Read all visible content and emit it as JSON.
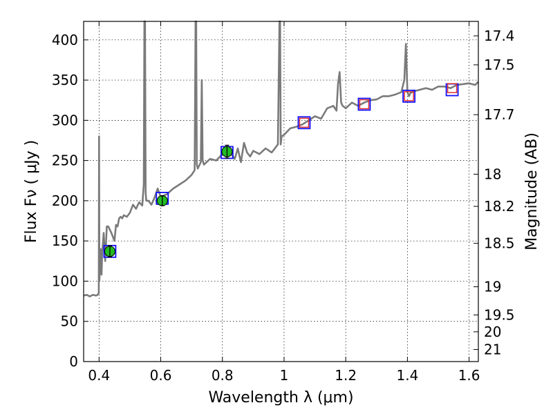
{
  "chart_data": {
    "type": "line",
    "xlabel": "Wavelength  λ (μm)",
    "ylabel": "Flux  Fν  ( μJy )",
    "ylabel_right": "Magnitude (AB)",
    "xlim": [
      0.35,
      1.63
    ],
    "ylim": [
      0,
      423
    ],
    "grid": true,
    "x_ticks": [
      {
        "value": 0.4,
        "label": "0.4"
      },
      {
        "value": 0.6,
        "label": "0.6"
      },
      {
        "value": 0.8,
        "label": "0.8"
      },
      {
        "value": 1.0,
        "label": "1"
      },
      {
        "value": 1.2,
        "label": "1.2"
      },
      {
        "value": 1.4,
        "label": "1.4"
      },
      {
        "value": 1.6,
        "label": "1.6"
      }
    ],
    "y_ticks": [
      {
        "value": 0,
        "label": "0"
      },
      {
        "value": 50,
        "label": "50"
      },
      {
        "value": 100,
        "label": "100"
      },
      {
        "value": 150,
        "label": "150"
      },
      {
        "value": 200,
        "label": "200"
      },
      {
        "value": 250,
        "label": "250"
      },
      {
        "value": 300,
        "label": "300"
      },
      {
        "value": 350,
        "label": "350"
      },
      {
        "value": 400,
        "label": "400"
      }
    ],
    "magnitude_ticks": [
      {
        "label": "17.4",
        "flux": 405
      },
      {
        "label": "17.5",
        "flux": 369
      },
      {
        "label": "17.7",
        "flux": 307
      },
      {
        "label": "18",
        "flux": 233
      },
      {
        "label": "18.2",
        "flux": 193
      },
      {
        "label": "18.5",
        "flux": 147
      },
      {
        "label": "19",
        "flux": 93
      },
      {
        "label": "19.5",
        "flux": 58
      },
      {
        "label": "20",
        "flux": 37
      },
      {
        "label": "21",
        "flux": 15
      }
    ],
    "spectrum": {
      "color": "#7a7a7a",
      "x": [
        0.35,
        0.36,
        0.37,
        0.38,
        0.39,
        0.395,
        0.399,
        0.4,
        0.401,
        0.403,
        0.405,
        0.408,
        0.41,
        0.415,
        0.42,
        0.425,
        0.43,
        0.44,
        0.45,
        0.455,
        0.46,
        0.465,
        0.47,
        0.475,
        0.48,
        0.49,
        0.5,
        0.51,
        0.52,
        0.53,
        0.54,
        0.545,
        0.547,
        0.549,
        0.551,
        0.553,
        0.56,
        0.57,
        0.58,
        0.59,
        0.6,
        0.62,
        0.64,
        0.66,
        0.68,
        0.7,
        0.71,
        0.713,
        0.715,
        0.717,
        0.72,
        0.73,
        0.733,
        0.736,
        0.74,
        0.76,
        0.78,
        0.8,
        0.82,
        0.84,
        0.85,
        0.86,
        0.87,
        0.88,
        0.89,
        0.9,
        0.92,
        0.94,
        0.96,
        0.98,
        0.985,
        0.987,
        0.989,
        0.992,
        1.0,
        1.02,
        1.04,
        1.06,
        1.08,
        1.1,
        1.12,
        1.14,
        1.16,
        1.17,
        1.175,
        1.18,
        1.185,
        1.19,
        1.2,
        1.22,
        1.24,
        1.26,
        1.28,
        1.3,
        1.32,
        1.34,
        1.36,
        1.38,
        1.39,
        1.395,
        1.4,
        1.405,
        1.41,
        1.42,
        1.44,
        1.46,
        1.48,
        1.5,
        1.52,
        1.54,
        1.56,
        1.58,
        1.6,
        1.62,
        1.63
      ],
      "y": [
        82,
        83,
        81,
        83,
        82,
        83,
        85,
        280,
        100,
        120,
        140,
        108,
        135,
        160,
        125,
        168,
        168,
        160,
        150,
        170,
        168,
        178,
        180,
        178,
        182,
        180,
        185,
        195,
        190,
        198,
        194,
        220,
        423,
        423,
        210,
        200,
        200,
        195,
        204,
        215,
        205,
        208,
        215,
        220,
        225,
        232,
        238,
        423,
        423,
        245,
        240,
        248,
        350,
        250,
        245,
        252,
        250,
        258,
        262,
        252,
        265,
        248,
        272,
        260,
        255,
        262,
        258,
        265,
        260,
        270,
        423,
        423,
        270,
        280,
        282,
        290,
        292,
        295,
        300,
        305,
        302,
        315,
        318,
        312,
        345,
        360,
        322,
        318,
        315,
        322,
        318,
        322,
        325,
        326,
        330,
        330,
        332,
        335,
        350,
        395,
        335,
        330,
        334,
        336,
        338,
        340,
        338,
        342,
        342,
        340,
        344,
        345,
        346,
        344,
        348
      ]
    },
    "photometry_blue": {
      "color": "#1010ff",
      "x": [
        0.435,
        0.605,
        0.815,
        1.065,
        1.26,
        1.405,
        1.545
      ],
      "y": [
        137,
        203,
        260,
        297,
        320,
        330,
        338
      ]
    },
    "photometry_red": {
      "color": "#e03030",
      "x": [
        1.065,
        1.26,
        1.405,
        1.545
      ],
      "y": [
        297,
        320,
        330,
        340
      ]
    },
    "photometry_green": {
      "color": "#22bb22",
      "x": [
        0.435,
        0.605,
        0.815
      ],
      "y": [
        137,
        200,
        261
      ],
      "err": [
        7,
        6,
        8
      ]
    }
  }
}
